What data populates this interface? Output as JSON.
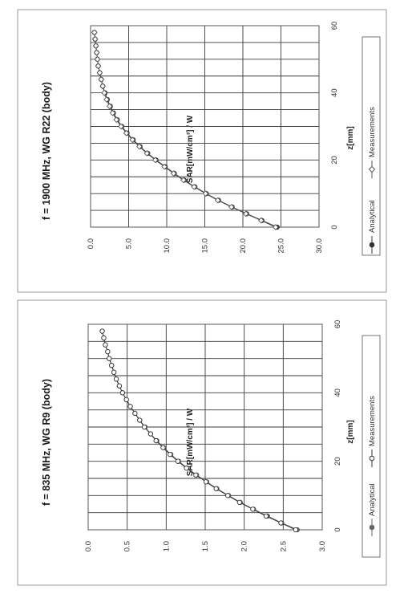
{
  "chart_data": [
    {
      "type": "scatter",
      "title": "f = 835 MHz, WG R9 (body)",
      "xlabel": "z[mm]",
      "ylabel": "SAR[mW/cm³] / W",
      "xlim": [
        0,
        60
      ],
      "ylim": [
        0.0,
        3.0
      ],
      "x_ticks": [
        "0",
        "20",
        "40",
        "60"
      ],
      "y_ticks": [
        "0.0",
        "0.5",
        "1.0",
        "1.5",
        "2.0",
        "2.5",
        "3.0"
      ],
      "grid": true,
      "legend_position": "bottom",
      "series": [
        {
          "name": "Analytical",
          "color": "#666666",
          "marker": "filled-circle",
          "x": [
            0,
            2,
            4,
            6,
            8,
            10,
            12,
            14,
            16,
            18,
            20,
            22,
            24,
            26,
            28,
            30,
            32,
            34,
            36,
            38,
            40,
            42,
            44,
            46,
            48,
            50,
            52,
            54,
            56,
            58
          ],
          "values": [
            2.68,
            2.48,
            2.3,
            2.12,
            1.95,
            1.8,
            1.65,
            1.52,
            1.39,
            1.27,
            1.16,
            1.06,
            0.97,
            0.88,
            0.8,
            0.73,
            0.66,
            0.6,
            0.54,
            0.49,
            0.44,
            0.4,
            0.36,
            0.33,
            0.3,
            0.27,
            0.25,
            0.22,
            0.2,
            0.18
          ]
        },
        {
          "name": "Measurements",
          "color": "#333333",
          "marker": "open-circle",
          "x": [
            0,
            2,
            4,
            6,
            8,
            10,
            12,
            14,
            16,
            18,
            20,
            22,
            24,
            26,
            28,
            30,
            32,
            34,
            36,
            38,
            40,
            42,
            44,
            46,
            48,
            50,
            52,
            54,
            56,
            58
          ],
          "values": [
            2.66,
            2.47,
            2.28,
            2.11,
            1.94,
            1.79,
            1.64,
            1.51,
            1.38,
            1.26,
            1.15,
            1.05,
            0.96,
            0.87,
            0.8,
            0.72,
            0.66,
            0.6,
            0.54,
            0.49,
            0.44,
            0.4,
            0.36,
            0.33,
            0.3,
            0.27,
            0.25,
            0.22,
            0.2,
            0.18
          ]
        }
      ]
    },
    {
      "type": "scatter",
      "title": "f = 1900 MHz, WG R22 (body)",
      "xlabel": "z[mm]",
      "ylabel": "SAR[mW/cm³] / W",
      "xlim": [
        0,
        60
      ],
      "ylim": [
        0.0,
        30.0
      ],
      "x_ticks": [
        "0",
        "20",
        "40",
        "60"
      ],
      "y_ticks": [
        "0.0",
        "5.0",
        "10.0",
        "15.0",
        "20.0",
        "25.0",
        "30.0"
      ],
      "grid": true,
      "legend_position": "bottom",
      "series": [
        {
          "name": "Analytical",
          "color": "#333333",
          "marker": "filled-circle",
          "x": [
            0,
            2,
            4,
            6,
            8,
            10,
            12,
            14,
            16,
            18,
            20,
            22,
            24,
            26,
            28,
            30,
            32,
            34,
            36,
            38,
            40,
            42,
            44,
            46,
            48,
            50,
            52,
            54,
            56,
            58
          ],
          "values": [
            24.5,
            22.5,
            20.5,
            18.6,
            16.8,
            15.2,
            13.7,
            12.3,
            11.0,
            9.8,
            8.6,
            7.5,
            6.5,
            5.6,
            4.8,
            4.1,
            3.5,
            3.0,
            2.6,
            2.2,
            1.9,
            1.6,
            1.4,
            1.2,
            1.0,
            0.9,
            0.8,
            0.7,
            0.6,
            0.5
          ]
        },
        {
          "name": "Measurements",
          "color": "#555555",
          "marker": "open-diamond",
          "x": [
            0,
            2,
            4,
            6,
            8,
            10,
            12,
            14,
            16,
            18,
            20,
            22,
            24,
            26,
            28,
            30,
            32,
            34,
            36,
            38,
            40,
            42,
            44,
            46,
            48,
            50,
            52,
            54,
            56,
            58
          ],
          "values": [
            24.3,
            22.4,
            20.4,
            18.5,
            16.7,
            15.1,
            13.6,
            12.2,
            10.9,
            9.7,
            8.5,
            7.4,
            6.4,
            5.5,
            4.7,
            4.0,
            3.4,
            2.9,
            2.5,
            2.1,
            1.8,
            1.6,
            1.4,
            1.2,
            1.0,
            0.9,
            0.8,
            0.7,
            0.6,
            0.5
          ]
        }
      ]
    }
  ]
}
